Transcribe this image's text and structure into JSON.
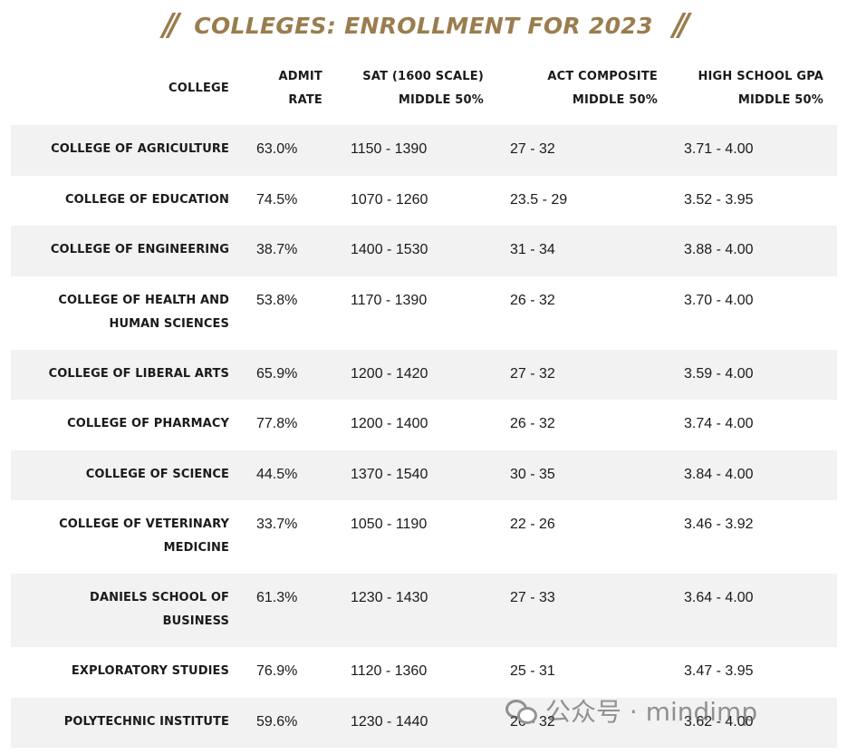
{
  "title": "COLLEGES: ENROLLMENT FOR 2023",
  "slash_left": "//",
  "slash_right": "//",
  "headers": {
    "college": "COLLEGE",
    "admit_l1": "ADMIT",
    "admit_l2": "RATE",
    "sat_l1": "SAT (1600 SCALE)",
    "sat_l2": "MIDDLE 50%",
    "act_l1": "ACT COMPOSITE",
    "act_l2": "MIDDLE 50%",
    "gpa_l1": "HIGH SCHOOL GPA",
    "gpa_l2": "MIDDLE 50%"
  },
  "rows": [
    {
      "college_l1": "COLLEGE OF AGRICULTURE",
      "college_l2": "",
      "admit": "63.0%",
      "sat": "1150 - 1390",
      "act": "27 - 32",
      "gpa": "3.71 - 4.00"
    },
    {
      "college_l1": "COLLEGE OF EDUCATION",
      "college_l2": "",
      "admit": "74.5%",
      "sat": "1070 - 1260",
      "act": "23.5 - 29",
      "gpa": "3.52 - 3.95"
    },
    {
      "college_l1": "COLLEGE OF ENGINEERING",
      "college_l2": "",
      "admit": "38.7%",
      "sat": "1400 - 1530",
      "act": "31 - 34",
      "gpa": "3.88 - 4.00"
    },
    {
      "college_l1": "COLLEGE OF HEALTH AND",
      "college_l2": "HUMAN SCIENCES",
      "admit": "53.8%",
      "sat": "1170 - 1390",
      "act": "26 - 32",
      "gpa": "3.70 - 4.00"
    },
    {
      "college_l1": "COLLEGE OF LIBERAL ARTS",
      "college_l2": "",
      "admit": "65.9%",
      "sat": "1200 - 1420",
      "act": "27 - 32",
      "gpa": "3.59 - 4.00"
    },
    {
      "college_l1": "COLLEGE OF PHARMACY",
      "college_l2": "",
      "admit": "77.8%",
      "sat": "1200 - 1400",
      "act": "26 - 32",
      "gpa": "3.74 - 4.00"
    },
    {
      "college_l1": "COLLEGE OF SCIENCE",
      "college_l2": "",
      "admit": "44.5%",
      "sat": "1370 - 1540",
      "act": "30 - 35",
      "gpa": "3.84 - 4.00"
    },
    {
      "college_l1": "COLLEGE OF VETERINARY",
      "college_l2": "MEDICINE",
      "admit": "33.7%",
      "sat": "1050 - 1190",
      "act": "22 - 26",
      "gpa": "3.46 - 3.92"
    },
    {
      "college_l1": "DANIELS SCHOOL OF",
      "college_l2": "BUSINESS",
      "admit": "61.3%",
      "sat": "1230 - 1430",
      "act": "27 - 33",
      "gpa": "3.64 - 4.00"
    },
    {
      "college_l1": "EXPLORATORY STUDIES",
      "college_l2": "",
      "admit": "76.9%",
      "sat": "1120 - 1360",
      "act": "25 - 31",
      "gpa": "3.47 - 3.95"
    },
    {
      "college_l1": "POLYTECHNIC INSTITUTE",
      "college_l2": "",
      "admit": "59.6%",
      "sat": "1230 - 1440",
      "act": "26 - 32",
      "gpa": "3.62 - 4.00"
    }
  ],
  "watermark": {
    "icon": "wechat-icon",
    "text": "公众号 · mindimp"
  }
}
